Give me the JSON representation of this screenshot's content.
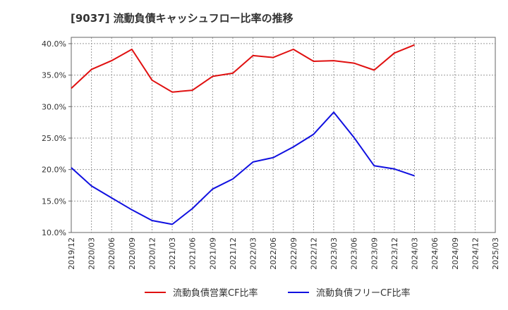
{
  "chart_data": {
    "type": "line",
    "title": "[9037]  流動負債キャッシュフロー比率の推移",
    "xlabel": "",
    "ylabel": "",
    "x": [
      "2019/12",
      "2020/03",
      "2020/06",
      "2020/09",
      "2020/12",
      "2021/03",
      "2021/06",
      "2021/09",
      "2021/12",
      "2022/03",
      "2022/06",
      "2022/09",
      "2022/12",
      "2023/03",
      "2023/06",
      "2023/09",
      "2023/12",
      "2024/03",
      "2024/06",
      "2024/09",
      "2024/12",
      "2025/03"
    ],
    "ylim": [
      10.0,
      41.0
    ],
    "yticks": [
      "10.0%",
      "15.0%",
      "20.0%",
      "25.0%",
      "30.0%",
      "35.0%",
      "40.0%"
    ],
    "ytick_values": [
      10,
      15,
      20,
      25,
      30,
      35,
      40
    ],
    "grid": true,
    "legend_position": "bottom",
    "series": [
      {
        "name": "流動負債営業CF比率",
        "color": "#e01010",
        "values": [
          32.9,
          35.9,
          37.3,
          39.1,
          34.2,
          32.3,
          32.6,
          34.8,
          35.3,
          38.1,
          37.8,
          39.1,
          37.2,
          37.3,
          36.9,
          35.8,
          38.5,
          39.8,
          null,
          null,
          null,
          null
        ]
      },
      {
        "name": "流動負債フリーCF比率",
        "color": "#1010e0",
        "values": [
          20.3,
          17.4,
          15.5,
          13.6,
          11.9,
          11.3,
          13.8,
          16.9,
          18.5,
          21.2,
          21.9,
          23.6,
          25.6,
          29.1,
          25.1,
          20.6,
          20.1,
          19.0,
          null,
          null,
          null,
          null
        ]
      }
    ]
  }
}
